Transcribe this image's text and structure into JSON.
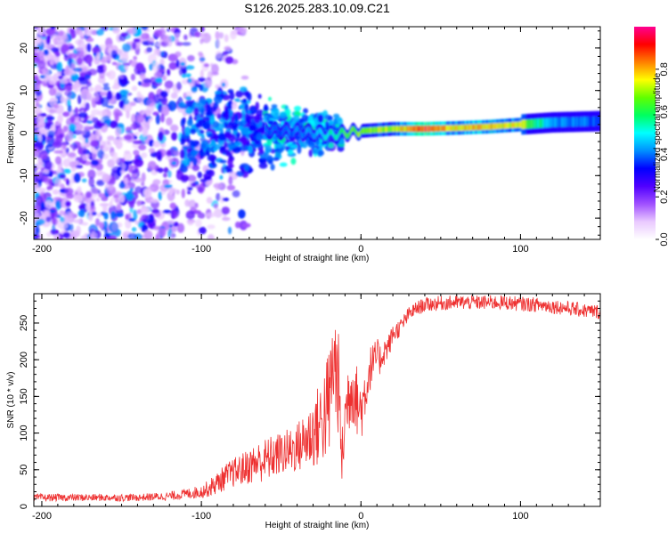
{
  "title": "S126.2025.283.10.09.C21",
  "chart_data": [
    {
      "type": "heatmap",
      "title": "S126.2025.283.10.09.C21",
      "xlabel": "Height of straight line (km)",
      "ylabel": "Frequency (Hz)",
      "xlim": [
        -205,
        150
      ],
      "ylim": [
        -25,
        25
      ],
      "xticks": [
        -200,
        -100,
        0,
        100
      ],
      "xticks_labels": [
        "-200",
        "-100",
        "0",
        "100"
      ],
      "yticks": [
        -20,
        -10,
        0,
        10,
        20
      ],
      "yticks_labels": [
        "-20",
        "-10",
        "0",
        "10",
        "20"
      ],
      "colorbar": {
        "label": "Normalized spectral amplitude",
        "range": [
          0.0,
          1.0
        ],
        "ticks": [
          0.0,
          0.2,
          0.4,
          0.6,
          0.8
        ],
        "ticks_labels": [
          "0.0",
          "0.2",
          "0.4",
          "0.6",
          "0.8"
        ],
        "colors": [
          "#ffffff",
          "#e9c9ff",
          "#a050ff",
          "#5000ff",
          "#0000ff",
          "#0090ff",
          "#00ffff",
          "#00ff60",
          "#60ff00",
          "#ffff00",
          "#ff8000",
          "#ff0000",
          "#ff0090"
        ]
      },
      "ridge": {
        "x": [
          -110,
          -90,
          -70,
          -50,
          -30,
          -20,
          -10,
          0,
          20,
          40,
          60,
          80,
          100,
          120,
          150
        ],
        "freq": [
          1.5,
          1.5,
          1.0,
          0.5,
          0.0,
          -0.5,
          0.0,
          0.5,
          1.0,
          1.0,
          1.2,
          1.5,
          2.0,
          2.5,
          2.8
        ],
        "amplitude": [
          0.3,
          0.35,
          0.4,
          0.4,
          0.45,
          0.55,
          0.65,
          0.7,
          0.75,
          0.95,
          0.8,
          0.85,
          0.75,
          0.45,
          0.4
        ]
      }
    },
    {
      "type": "line",
      "xlabel": "Height of straight line (km)",
      "ylabel": "SNR (10 * v/v)",
      "xlim": [
        -205,
        150
      ],
      "ylim": [
        0,
        290
      ],
      "xticks": [
        -200,
        -100,
        0,
        100
      ],
      "xticks_labels": [
        "-200",
        "-100",
        "0",
        "100"
      ],
      "yticks": [
        0,
        50,
        100,
        150,
        200,
        250
      ],
      "yticks_labels": [
        "0",
        "50",
        "100",
        "150",
        "200",
        "250"
      ],
      "series": [
        {
          "name": "SNR",
          "color": "#ee3030",
          "x": [
            -205,
            -180,
            -160,
            -140,
            -120,
            -110,
            -100,
            -95,
            -90,
            -85,
            -80,
            -75,
            -70,
            -65,
            -60,
            -55,
            -50,
            -45,
            -40,
            -35,
            -30,
            -25,
            -20,
            -17,
            -14,
            -12,
            -10,
            -8,
            -6,
            -4,
            -2,
            0,
            2,
            4,
            6,
            8,
            10,
            12,
            14,
            16,
            18,
            20,
            25,
            30,
            35,
            40,
            50,
            60,
            70,
            80,
            90,
            100,
            110,
            120,
            130,
            140,
            150
          ],
          "y": [
            12,
            12,
            12,
            12,
            14,
            17,
            20,
            25,
            32,
            40,
            46,
            50,
            55,
            60,
            63,
            68,
            72,
            75,
            80,
            90,
            100,
            115,
            140,
            200,
            165,
            60,
            120,
            150,
            165,
            158,
            140,
            130,
            150,
            170,
            190,
            195,
            205,
            200,
            210,
            215,
            222,
            235,
            245,
            262,
            270,
            275,
            277,
            278,
            278,
            278,
            278,
            276,
            275,
            273,
            270,
            267,
            265
          ],
          "noise": [
            5,
            5,
            5,
            5,
            6,
            7,
            9,
            12,
            15,
            18,
            20,
            22,
            25,
            28,
            30,
            30,
            30,
            32,
            35,
            40,
            50,
            60,
            80,
            80,
            70,
            40,
            50,
            55,
            55,
            50,
            48,
            45,
            40,
            35,
            30,
            28,
            25,
            22,
            20,
            18,
            16,
            14,
            12,
            10,
            10,
            10,
            10,
            10,
            10,
            10,
            10,
            10,
            10,
            10,
            10,
            10,
            10
          ]
        }
      ]
    }
  ]
}
